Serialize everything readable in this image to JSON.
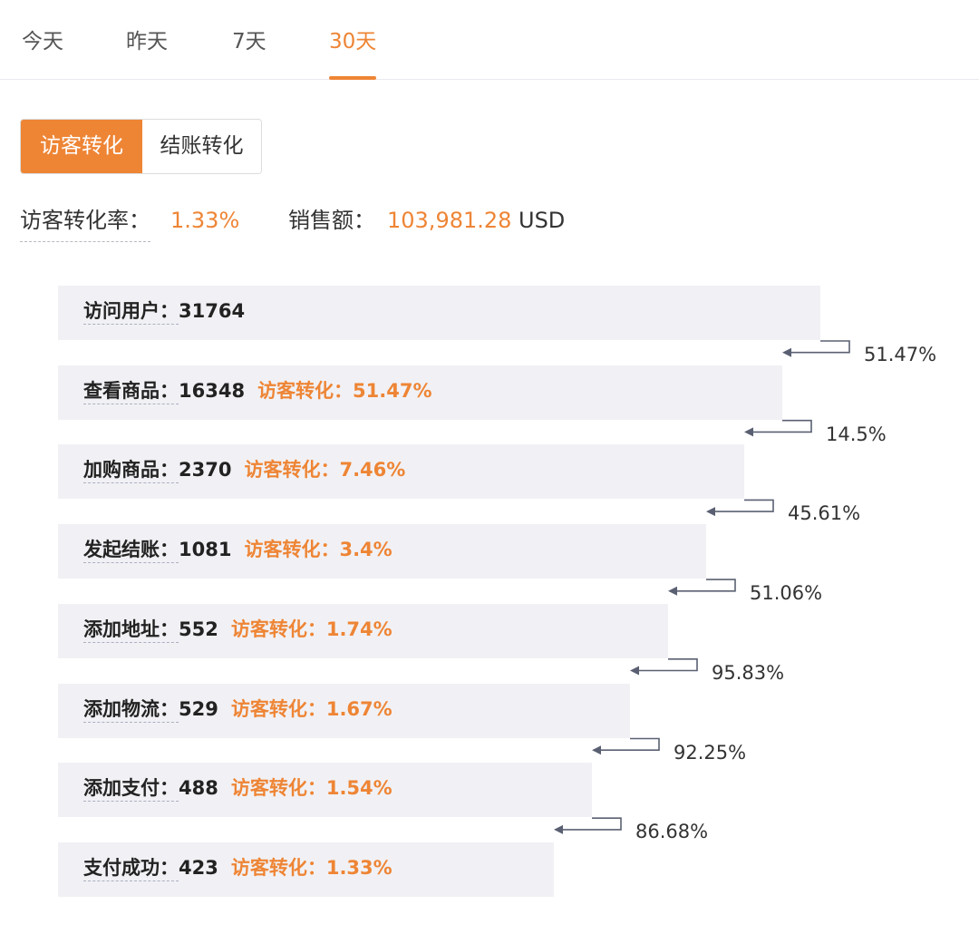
{
  "tabs": [
    {
      "label": "今天"
    },
    {
      "label": "昨天"
    },
    {
      "label": "7天"
    },
    {
      "label": "30天",
      "active": true
    }
  ],
  "segment": {
    "options": [
      {
        "label": "访客转化",
        "active": true
      },
      {
        "label": "结账转化",
        "active": false
      }
    ]
  },
  "summary": {
    "rate_label": "访客转化率：",
    "rate_value": "1.33%",
    "sales_label": "销售额：",
    "sales_value": "103,981.28",
    "sales_unit": "USD"
  },
  "colors": {
    "accent": "#ee8535",
    "bar_bg": "#f1f1f5",
    "connector": "#5a6072"
  },
  "funnel": {
    "max_value": 31764,
    "stages": [
      {
        "label": "访问用户：",
        "value": "31764",
        "count": 31764,
        "conv": ""
      },
      {
        "label": "查看商品：",
        "value": "16348",
        "count": 16348,
        "conv": "访客转化：51.47%"
      },
      {
        "label": "加购商品：",
        "value": "2370",
        "count": 2370,
        "conv": "访客转化：7.46%"
      },
      {
        "label": "发起结账：",
        "value": "1081",
        "count": 1081,
        "conv": "访客转化：3.4%"
      },
      {
        "label": "添加地址：",
        "value": "552",
        "count": 552,
        "conv": "访客转化：1.74%"
      },
      {
        "label": "添加物流：",
        "value": "529",
        "count": 529,
        "conv": "访客转化：1.67%"
      },
      {
        "label": "添加支付：",
        "value": "488",
        "count": 488,
        "conv": "访客转化：1.54%"
      },
      {
        "label": "支付成功：",
        "value": "423",
        "count": 423,
        "conv": "访客转化：1.33%"
      }
    ],
    "step_rates": [
      "51.47%",
      "14.5%",
      "45.61%",
      "51.06%",
      "95.83%",
      "92.25%",
      "86.68%"
    ]
  }
}
